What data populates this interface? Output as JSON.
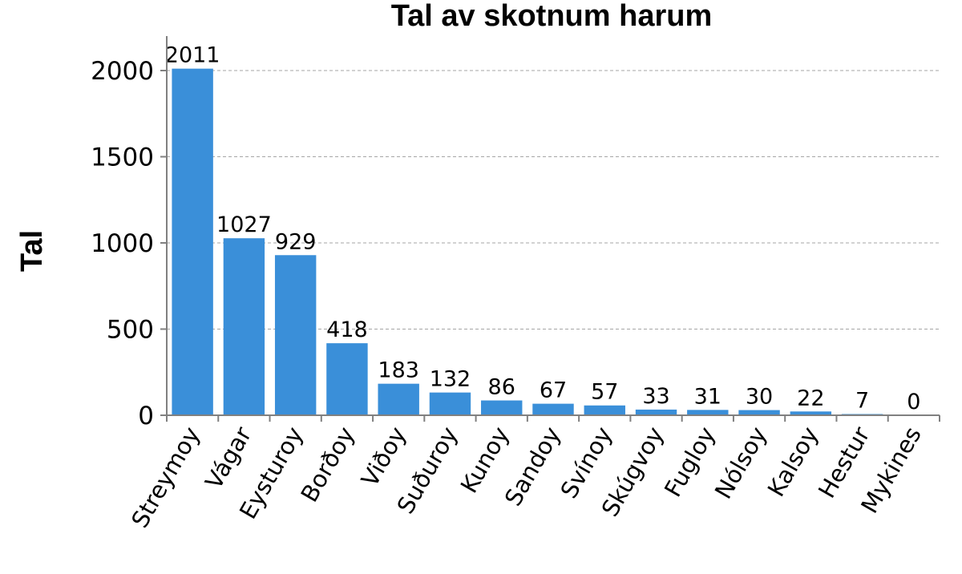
{
  "chart_data": {
    "type": "bar",
    "title": "Tal av skotnum harum",
    "xlabel": "",
    "ylabel": "Tal",
    "ylim": [
      0,
      2200
    ],
    "yticks": [
      0,
      500,
      1000,
      1500,
      2000
    ],
    "grid": true,
    "legend": "none",
    "bar_color": "#3a8fd9",
    "categories": [
      "Streymoy",
      "Vágar",
      "Eysturoy",
      "Borðoy",
      "Viðoy",
      "Suðuroy",
      "Kunoy",
      "Sandoy",
      "Svínoy",
      "Skúgvoy",
      "Fugloy",
      "Nólsoy",
      "Kalsoy",
      "Hestur",
      "Mykines"
    ],
    "values": [
      2011,
      1027,
      929,
      418,
      183,
      132,
      86,
      67,
      57,
      33,
      31,
      30,
      22,
      7,
      0
    ]
  }
}
